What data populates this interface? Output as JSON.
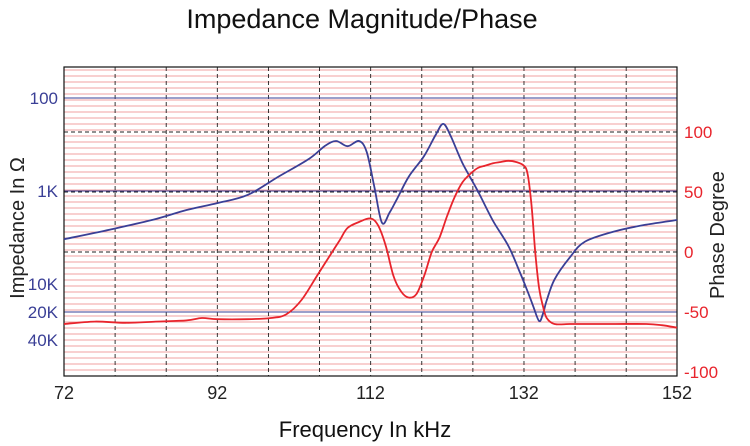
{
  "chart_data": {
    "type": "line",
    "title": "Impedance Magnitude/Phase",
    "xlabel": "Frequency In kHz",
    "ylabel_left": "Impedance In Ω",
    "ylabel_right": "Phase Degree",
    "xlim": [
      72,
      152
    ],
    "x_ticks": [
      72,
      92,
      112,
      132,
      152
    ],
    "x_tick_labels": [
      "72",
      "92",
      "112",
      "132",
      "152"
    ],
    "left_axis": {
      "scale": "log-reversed",
      "ticks": [
        100,
        1000,
        10000,
        20000,
        40000
      ],
      "tick_labels": [
        "100",
        "1K",
        "10K",
        "20K",
        "40K"
      ],
      "color": "#3a3f96"
    },
    "right_axis": {
      "ticks": [
        100,
        50,
        0,
        -50,
        -100
      ],
      "tick_labels": [
        "100",
        "50",
        "0",
        "-50",
        "-100"
      ],
      "ylim": [
        -100,
        150
      ],
      "color": "#e8242c"
    },
    "grid": true,
    "series": [
      {
        "axis": "left",
        "color": "#3a3f96",
        "x": [
          72,
          78,
          84,
          88,
          92,
          96,
          100,
          104,
          106,
          107.5,
          109,
          110.5,
          111.5,
          112.5,
          113.5,
          114.5,
          115.5,
          117,
          119,
          120.5,
          121.5,
          122.5,
          124,
          126,
          128,
          130,
          131.5,
          132.5,
          133.2,
          134,
          134.5,
          135,
          136,
          138,
          140,
          144,
          148,
          152
        ],
        "y": [
          3300,
          2600,
          2000,
          1600,
          1350,
          1100,
          700,
          450,
          330,
          290,
          330,
          290,
          380,
          900,
          2200,
          1700,
          1200,
          700,
          420,
          250,
          190,
          260,
          500,
          1000,
          2100,
          3900,
          7500,
          12000,
          17000,
          25000,
          21000,
          15000,
          9000,
          5200,
          3500,
          2700,
          2300,
          2050
        ]
      },
      {
        "axis": "right",
        "color": "#e8242c",
        "x": [
          72,
          76,
          80,
          84,
          88,
          90,
          92,
          96,
          99,
          101,
          103,
          105,
          106,
          107,
          108,
          109,
          110.5,
          112,
          113,
          114,
          115,
          116,
          117,
          118,
          119,
          120,
          121,
          122,
          123,
          124,
          125,
          126,
          127,
          128,
          129,
          130,
          131,
          132,
          132.5,
          133,
          133.5,
          134,
          134.5,
          135,
          136,
          138,
          140,
          144,
          148,
          150,
          152
        ],
        "y": [
          -60,
          -58,
          -59,
          -58,
          -57,
          -55,
          -56,
          -56,
          -55,
          -52,
          -40,
          -20,
          -10,
          0,
          10,
          20,
          25,
          28,
          22,
          5,
          -20,
          -33,
          -38,
          -35,
          -20,
          0,
          12,
          30,
          46,
          58,
          65,
          70,
          72,
          74,
          75,
          76,
          75,
          72,
          65,
          40,
          0,
          -30,
          -45,
          -55,
          -60,
          -60,
          -60,
          -60,
          -60,
          -61,
          -63
        ]
      }
    ]
  }
}
